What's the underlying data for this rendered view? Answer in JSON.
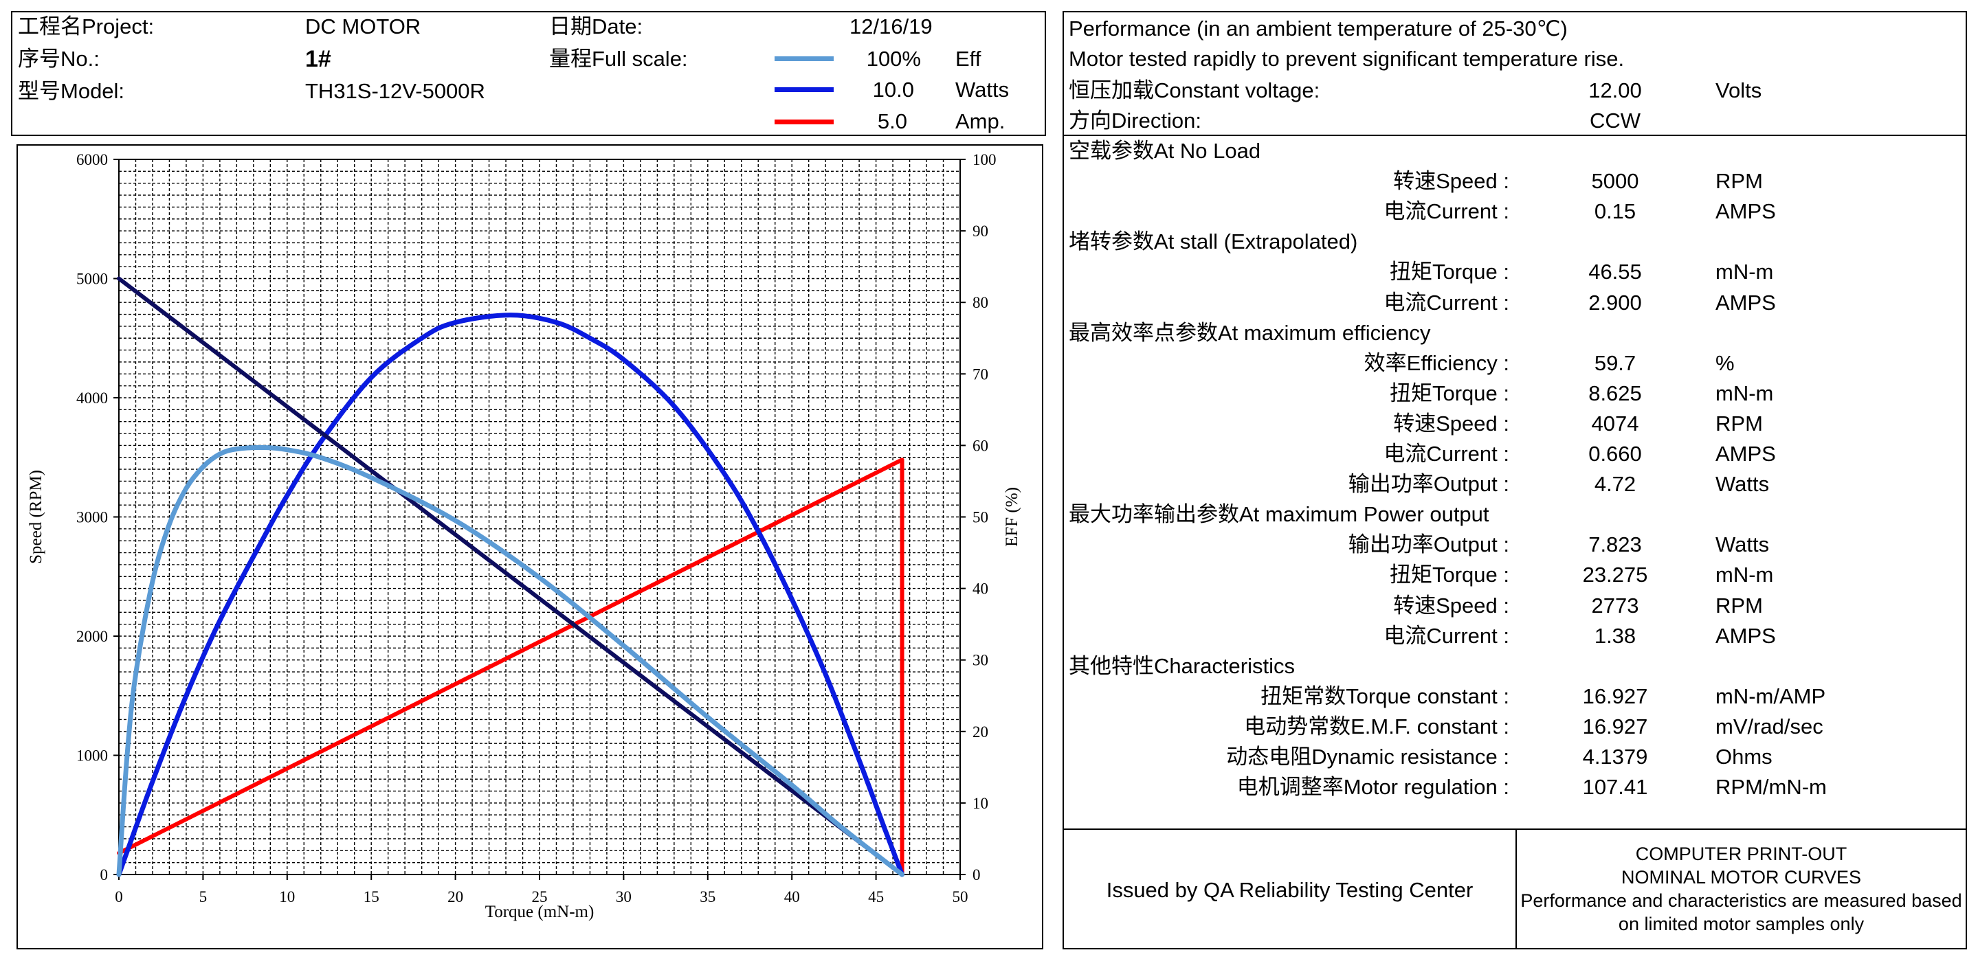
{
  "header": {
    "project_label": "工程名Project:",
    "project_value": "DC MOTOR",
    "date_label": "日期Date:",
    "date_value": "12/16/19",
    "no_label": "序号No.:",
    "no_value": "1#",
    "full_scale_label": "量程Full scale:",
    "model_label": "型号Model:",
    "model_value": "TH31S-12V-5000R",
    "scales": [
      {
        "value": "100%",
        "unit": "Eff",
        "color": "#5b9bd5"
      },
      {
        "value": "10.0",
        "unit": "Watts",
        "color": "#0a1be0"
      },
      {
        "value": "5.0",
        "unit": "Amp.",
        "color": "#ff0000"
      }
    ]
  },
  "performance": {
    "title": "Performance (in an ambient temperature of 25-30℃)",
    "note": "Motor tested rapidly to prevent significant temperature rise.",
    "voltage_label": "恒压加载Constant voltage:",
    "voltage_value": "12.00",
    "voltage_unit": "Volts",
    "direction_label": "方向Direction:",
    "direction_value": "CCW",
    "sections": [
      {
        "title": "空载参数At No Load",
        "rows": [
          {
            "label": "转速Speed  :",
            "value": "5000",
            "unit": "RPM"
          },
          {
            "label": "电流Current  :",
            "value": "0.15",
            "unit": "AMPS"
          }
        ]
      },
      {
        "title": "堵转参数At stall (Extrapolated)",
        "rows": [
          {
            "label": "扭矩Torque  :",
            "value": "46.55",
            "unit": "mN-m"
          },
          {
            "label": "电流Current  :",
            "value": "2.900",
            "unit": "AMPS"
          }
        ]
      },
      {
        "title": "最高效率点参数At maximum efficiency",
        "rows": [
          {
            "label": "效率Efficiency :",
            "value": "59.7",
            "unit": "%"
          },
          {
            "label": "扭矩Torque :",
            "value": "8.625",
            "unit": "mN-m"
          },
          {
            "label": "转速Speed :",
            "value": "4074",
            "unit": "RPM"
          },
          {
            "label": "电流Current :",
            "value": "0.660",
            "unit": "AMPS"
          },
          {
            "label": "输出功率Output :",
            "value": "4.72",
            "unit": "Watts"
          }
        ]
      },
      {
        "title": "最大功率输出参数At maximum Power output",
        "rows": [
          {
            "label": "输出功率Output :",
            "value": "7.823",
            "unit": "Watts"
          },
          {
            "label": "扭矩Torque :",
            "value": "23.275",
            "unit": "mN-m"
          },
          {
            "label": "转速Speed :",
            "value": "2773",
            "unit": "RPM"
          },
          {
            "label": "电流Current :",
            "value": "1.38",
            "unit": "AMPS"
          }
        ]
      },
      {
        "title": "其他特性Characteristics",
        "rows": [
          {
            "label": "扭矩常数Torque constant :",
            "value": "16.927",
            "unit": "mN-m/AMP"
          },
          {
            "label": "电动势常数E.M.F. constant :",
            "value": "16.927",
            "unit": "mV/rad/sec"
          },
          {
            "label": "动态电阻Dynamic resistance :",
            "value": "4.1379",
            "unit": "Ohms"
          },
          {
            "label": "电机调整率Motor regulation :",
            "value": "107.41",
            "unit": "RPM/mN-m"
          }
        ]
      }
    ]
  },
  "footer": {
    "issued": "Issued by QA Reliability Testing Center",
    "line1": "COMPUTER PRINT-OUT",
    "line2": "NOMINAL MOTOR CURVES",
    "line3": "Performance and characteristics are measured based",
    "line4": "on limited motor samples only"
  },
  "chart_data": {
    "type": "line",
    "xlabel": "Torque (mN-m)",
    "ylabel": "Speed (RPM)",
    "y2label": "EFF (%)",
    "xlim": [
      0,
      50
    ],
    "ylim": [
      0,
      6000
    ],
    "y2lim": [
      0,
      100
    ],
    "xticks": [
      0,
      5,
      10,
      15,
      20,
      25,
      30,
      35,
      40,
      45,
      50
    ],
    "yticks": [
      0,
      1000,
      2000,
      3000,
      4000,
      5000,
      6000
    ],
    "y2ticks": [
      0,
      10,
      20,
      30,
      40,
      50,
      60,
      70,
      80,
      90,
      100
    ],
    "grid": true,
    "stall_torque": 46.55,
    "series": [
      {
        "key": "speed",
        "unit": "RPM",
        "color": "#0d0d5e",
        "points": [
          [
            0,
            5000
          ],
          [
            46.55,
            0
          ]
        ]
      },
      {
        "key": "efficiency",
        "unit": "%",
        "color": "#5b9bd5",
        "points": [
          [
            0,
            0
          ],
          [
            0.5,
            17
          ],
          [
            1,
            28
          ],
          [
            2,
            41
          ],
          [
            3,
            49
          ],
          [
            4,
            54
          ],
          [
            5,
            57
          ],
          [
            6,
            58.8
          ],
          [
            7,
            59.5
          ],
          [
            8.625,
            59.7
          ],
          [
            10,
            59.4
          ],
          [
            12,
            58.3
          ],
          [
            15,
            55.5
          ],
          [
            20,
            49.5
          ],
          [
            25,
            41.5
          ],
          [
            30,
            32
          ],
          [
            35,
            22
          ],
          [
            40,
            12.5
          ],
          [
            43,
            6.5
          ],
          [
            46.55,
            0
          ]
        ]
      },
      {
        "key": "output_power",
        "unit": "Watts",
        "color": "#0a1be0",
        "points": [
          [
            0,
            0
          ],
          [
            2,
            1.3
          ],
          [
            4,
            2.5
          ],
          [
            6,
            3.55
          ],
          [
            8.625,
            4.72
          ],
          [
            10,
            5.3
          ],
          [
            12,
            6.05
          ],
          [
            15,
            6.95
          ],
          [
            18,
            7.5
          ],
          [
            20,
            7.72
          ],
          [
            23.275,
            7.823
          ],
          [
            26,
            7.72
          ],
          [
            28,
            7.5
          ],
          [
            30,
            7.2
          ],
          [
            33,
            6.55
          ],
          [
            36,
            5.6
          ],
          [
            38,
            4.8
          ],
          [
            40,
            3.85
          ],
          [
            42,
            2.8
          ],
          [
            44,
            1.6
          ],
          [
            45.5,
            0.65
          ],
          [
            46.55,
            0
          ]
        ]
      },
      {
        "key": "current",
        "unit": "AMPS",
        "color": "#ff0000",
        "points": [
          [
            0,
            0.15
          ],
          [
            46.55,
            2.9
          ],
          [
            46.55,
            0
          ]
        ]
      }
    ]
  }
}
